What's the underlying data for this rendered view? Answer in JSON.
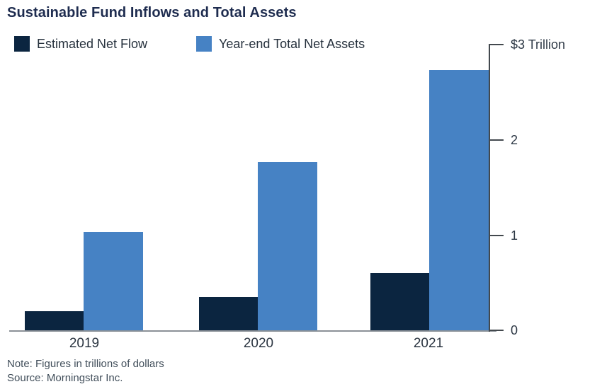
{
  "chart_data": {
    "type": "bar",
    "title": "Sustainable Fund Inflows and Total Assets",
    "categories": [
      "2019",
      "2020",
      "2021"
    ],
    "series": [
      {
        "name": "Estimated Net Flow",
        "color": "#0b2540",
        "values": [
          0.2,
          0.35,
          0.6
        ]
      },
      {
        "name": "Year-end Total Net Assets",
        "color": "#4682c4",
        "values": [
          1.03,
          1.77,
          2.73
        ]
      }
    ],
    "y_axis": {
      "position": "right",
      "range": [
        0,
        3
      ],
      "unit": "trillions of dollars",
      "ticks": [
        {
          "value": 0,
          "label": "0"
        },
        {
          "value": 1,
          "label": "1"
        },
        {
          "value": 2,
          "label": "2"
        },
        {
          "value": 3,
          "label": "$3 Trillion"
        }
      ]
    },
    "x_axis": {
      "gridlines": false
    },
    "legend_position": "top-left",
    "notes": [
      "Note: Figures in trillions of dollars",
      "Source: Morningstar Inc."
    ]
  }
}
